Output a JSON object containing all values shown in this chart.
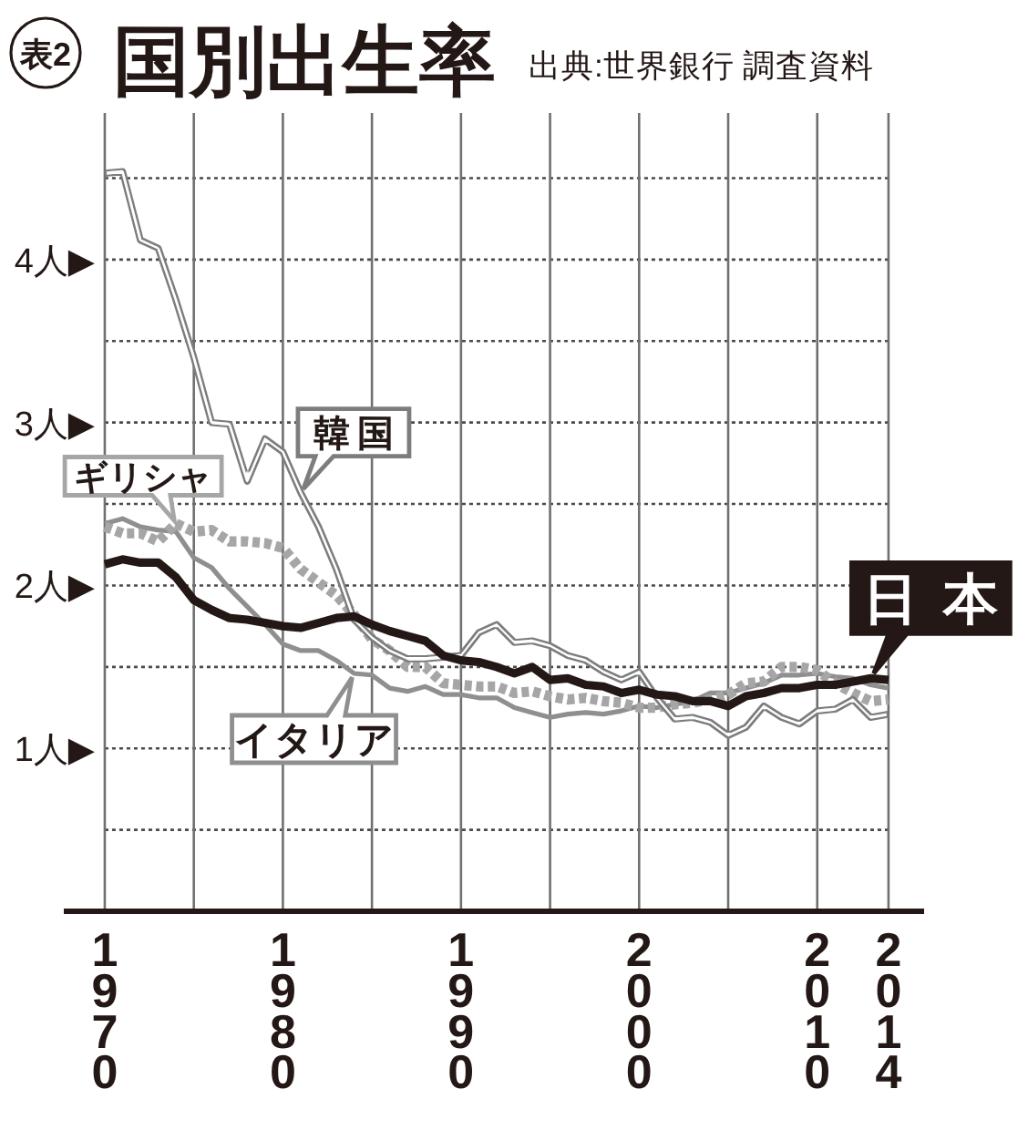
{
  "chart_data": {
    "type": "line",
    "title": "国別出生率",
    "annotations": [
      "表2",
      "出典:世界銀行 調査資料"
    ],
    "x": [
      1970,
      1971,
      1972,
      1973,
      1974,
      1975,
      1976,
      1977,
      1978,
      1979,
      1980,
      1981,
      1982,
      1983,
      1984,
      1985,
      1986,
      1987,
      1988,
      1989,
      1990,
      1991,
      1992,
      1993,
      1994,
      1995,
      1996,
      1997,
      1998,
      1999,
      2000,
      2001,
      2002,
      2003,
      2004,
      2005,
      2006,
      2007,
      2008,
      2009,
      2010,
      2011,
      2012,
      2013,
      2014
    ],
    "series": [
      {
        "name": "日本",
        "color": "#231815",
        "values": [
          2.13,
          2.16,
          2.14,
          2.14,
          2.05,
          1.91,
          1.85,
          1.8,
          1.79,
          1.77,
          1.75,
          1.74,
          1.77,
          1.8,
          1.81,
          1.76,
          1.72,
          1.69,
          1.66,
          1.57,
          1.54,
          1.53,
          1.5,
          1.46,
          1.5,
          1.42,
          1.43,
          1.39,
          1.38,
          1.34,
          1.36,
          1.33,
          1.32,
          1.29,
          1.29,
          1.26,
          1.32,
          1.34,
          1.37,
          1.37,
          1.39,
          1.39,
          1.41,
          1.43,
          1.42
        ]
      },
      {
        "name": "韓国",
        "color": "#7d7d7d",
        "values": [
          4.53,
          4.54,
          4.12,
          4.07,
          3.75,
          3.4,
          3.0,
          2.99,
          2.64,
          2.9,
          2.82,
          2.57,
          2.36,
          2.1,
          1.79,
          1.68,
          1.6,
          1.55,
          1.55,
          1.56,
          1.57,
          1.71,
          1.76,
          1.65,
          1.66,
          1.63,
          1.57,
          1.54,
          1.47,
          1.42,
          1.47,
          1.31,
          1.18,
          1.19,
          1.16,
          1.08,
          1.13,
          1.26,
          1.19,
          1.15,
          1.23,
          1.24,
          1.3,
          1.19,
          1.21
        ]
      },
      {
        "name": "ギリシャ",
        "color": "#a6a6a6",
        "line_style": "dotted",
        "values": [
          2.36,
          2.32,
          2.32,
          2.27,
          2.38,
          2.33,
          2.34,
          2.27,
          2.27,
          2.26,
          2.23,
          2.1,
          2.02,
          1.94,
          1.82,
          1.67,
          1.6,
          1.5,
          1.5,
          1.4,
          1.39,
          1.38,
          1.38,
          1.34,
          1.35,
          1.32,
          1.3,
          1.31,
          1.29,
          1.28,
          1.25,
          1.25,
          1.27,
          1.28,
          1.3,
          1.33,
          1.4,
          1.41,
          1.5,
          1.5,
          1.48,
          1.4,
          1.34,
          1.29,
          1.3
        ]
      },
      {
        "name": "イタリア",
        "color": "#8f8f8f",
        "values": [
          2.38,
          2.41,
          2.36,
          2.34,
          2.33,
          2.17,
          2.11,
          1.98,
          1.87,
          1.76,
          1.64,
          1.6,
          1.6,
          1.54,
          1.46,
          1.45,
          1.37,
          1.35,
          1.38,
          1.33,
          1.33,
          1.31,
          1.31,
          1.25,
          1.22,
          1.19,
          1.21,
          1.22,
          1.21,
          1.23,
          1.26,
          1.25,
          1.27,
          1.29,
          1.34,
          1.34,
          1.37,
          1.4,
          1.45,
          1.45,
          1.46,
          1.44,
          1.43,
          1.39,
          1.37
        ]
      }
    ],
    "xlim": [
      1967.7,
      2016
    ],
    "xticks": [
      1970,
      {
        "value": 1975,
        "label": null
      },
      1980,
      {
        "value": 1985,
        "label": null
      },
      1990,
      {
        "value": 1995,
        "label": null
      },
      2000,
      {
        "value": 2005,
        "label": null
      },
      2010,
      2014
    ],
    "ylim": [
      0,
      4.9
    ],
    "yticks": [
      {
        "value": 0.5,
        "label": null
      },
      {
        "value": 1,
        "label": "1人▶"
      },
      {
        "value": 1.5,
        "label": null
      },
      {
        "value": 2,
        "label": "2人▶"
      },
      {
        "value": 2.5,
        "label": null
      },
      {
        "value": 3,
        "label": "3人▶"
      },
      {
        "value": 3.5,
        "label": null
      },
      {
        "value": 4,
        "label": "4人▶"
      },
      {
        "value": 4.5,
        "label": null
      }
    ],
    "grid": true
  }
}
